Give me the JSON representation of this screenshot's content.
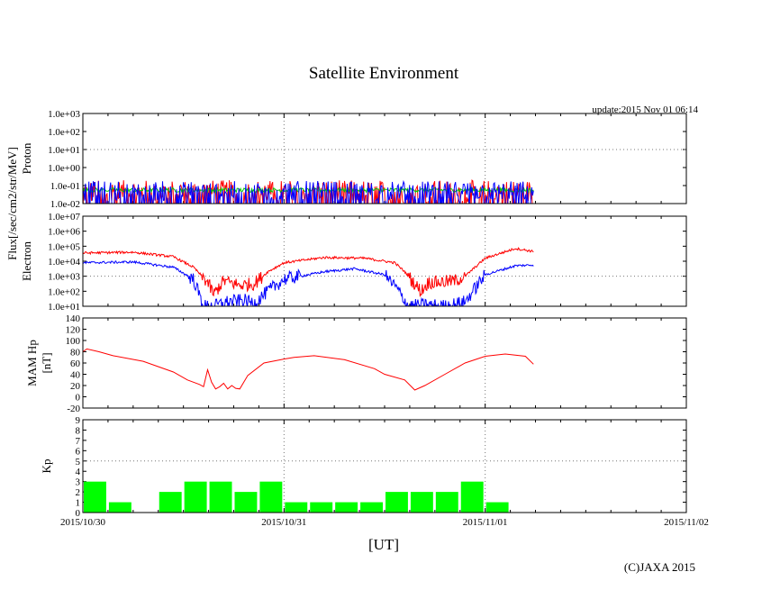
{
  "title": "Satellite Environment",
  "update_text": "update:2015 Nov 01 06:14",
  "copyright": "(C)JAXA 2015",
  "flux_label": "Flux[/sec/cm2/str/MeV]",
  "x_axis": {
    "label": "[UT]",
    "ticks": [
      "2015/10/30",
      "2015/10/31",
      "2015/11/01",
      "2015/11/02"
    ],
    "range_days": [
      0,
      3
    ]
  },
  "chart_data": [
    {
      "type": "line",
      "panel": "proton",
      "ylabel": "Proton",
      "yscale": "log",
      "ylim": [
        -2,
        3
      ],
      "ytick_labels": [
        "1.0e-02",
        "1.0e-01",
        "1.0e+00",
        "1.0e+01",
        "1.0e+02",
        "1.0e+03"
      ],
      "data_end_day": 2.24,
      "series": [
        {
          "name": "red",
          "color": "#ff0000",
          "base_log": -1.35,
          "noise": 0.65
        },
        {
          "name": "green",
          "color": "#00cc00",
          "base_log": -1.25,
          "noise": 0.12
        },
        {
          "name": "blue",
          "color": "#0000ff",
          "base_log": -1.3,
          "noise": 0.55
        }
      ]
    },
    {
      "type": "line",
      "panel": "electron",
      "ylabel": "Electron",
      "yscale": "log",
      "ylim": [
        1,
        7
      ],
      "ytick_labels": [
        "1.0e+01",
        "1.0e+02",
        "1.0e+03",
        "1.0e+04",
        "1.0e+05",
        "1.0e+06",
        "1.0e+07"
      ],
      "series": [
        {
          "name": "red",
          "color": "#ff0000",
          "x": [
            0,
            0.25,
            0.45,
            0.55,
            0.62,
            0.65,
            0.7,
            0.78,
            0.85,
            0.92,
            1.0,
            1.2,
            1.4,
            1.55,
            1.6,
            1.68,
            1.72,
            1.78,
            1.85,
            1.9,
            2.0,
            2.15,
            2.24
          ],
          "log_y": [
            4.55,
            4.6,
            4.3,
            3.6,
            2.6,
            1.8,
            2.7,
            2.4,
            2.5,
            3.3,
            3.9,
            4.25,
            4.2,
            3.9,
            3.3,
            2.0,
            2.6,
            2.6,
            2.7,
            3.0,
            4.2,
            4.85,
            4.65
          ]
        },
        {
          "name": "blue",
          "color": "#0000ff",
          "x": [
            0,
            0.25,
            0.45,
            0.55,
            0.6,
            0.65,
            0.72,
            0.8,
            0.85,
            0.92,
            1.0,
            1.2,
            1.35,
            1.5,
            1.56,
            1.62,
            1.7,
            1.8,
            1.9,
            2.0,
            2.15,
            2.24
          ],
          "log_y": [
            3.9,
            3.95,
            3.6,
            2.8,
            1.0,
            1.0,
            1.3,
            1.4,
            1.2,
            2.0,
            2.8,
            3.3,
            3.5,
            3.1,
            2.2,
            1.0,
            1.1,
            1.0,
            1.3,
            3.1,
            3.7,
            3.75
          ]
        }
      ]
    },
    {
      "type": "line",
      "panel": "magnetic",
      "ylabel": "MAM Hp",
      "ylabel2": "[nT]",
      "ylim": [
        -20,
        140
      ],
      "ytick_labels": [
        "-20",
        "0",
        "20",
        "40",
        "60",
        "80",
        "100",
        "120",
        "140"
      ],
      "series": [
        {
          "name": "MAM Hp",
          "color": "#ff0000",
          "x": [
            0,
            0.02,
            0.08,
            0.15,
            0.3,
            0.45,
            0.52,
            0.58,
            0.6,
            0.62,
            0.64,
            0.66,
            0.68,
            0.7,
            0.72,
            0.74,
            0.76,
            0.78,
            0.82,
            0.9,
            1.0,
            1.05,
            1.15,
            1.3,
            1.45,
            1.5,
            1.6,
            1.65,
            1.7,
            1.8,
            1.9,
            2.0,
            2.05,
            2.1,
            2.2,
            2.24
          ],
          "y": [
            80,
            85,
            80,
            73,
            63,
            44,
            30,
            22,
            18,
            48,
            26,
            14,
            18,
            24,
            14,
            20,
            15,
            14,
            38,
            60,
            67,
            70,
            73,
            66,
            50,
            40,
            30,
            12,
            20,
            40,
            60,
            72,
            74,
            76,
            72,
            58
          ]
        }
      ]
    },
    {
      "type": "bar",
      "panel": "kp",
      "ylabel": "Kp",
      "ylim": [
        0,
        9
      ],
      "ytick_labels": [
        "0",
        "1",
        "2",
        "3",
        "4",
        "5",
        "6",
        "7",
        "8",
        "9"
      ],
      "bar_color": "#00ff00",
      "bar_width_days": 0.125,
      "categories": [
        "10/30 00",
        "10/30 03",
        "10/30 06",
        "10/30 09",
        "10/30 12",
        "10/30 15",
        "10/30 18",
        "10/30 21",
        "10/31 00",
        "10/31 03",
        "10/31 06",
        "10/31 09",
        "10/31 12",
        "10/31 15",
        "10/31 18",
        "10/31 21",
        "11/01 00",
        "11/01 03"
      ],
      "values": [
        3,
        1,
        0,
        2,
        3,
        3,
        2,
        3,
        1,
        1,
        1,
        1,
        2,
        2,
        2,
        3,
        1,
        0
      ]
    }
  ]
}
